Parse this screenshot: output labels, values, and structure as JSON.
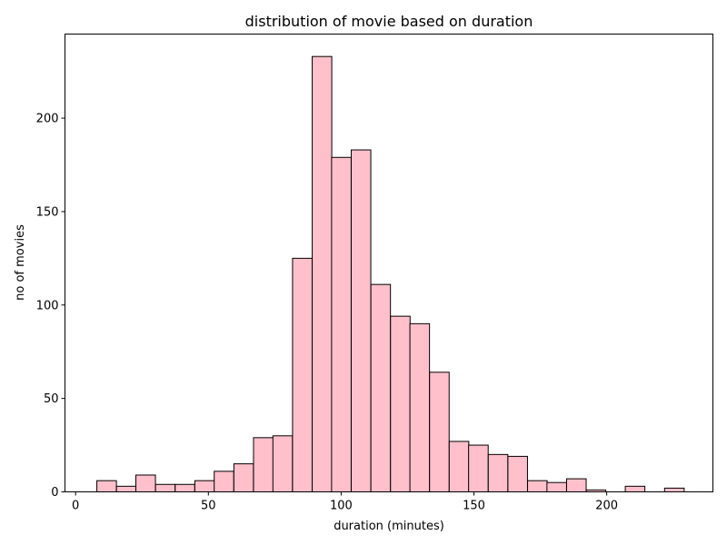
{
  "chart_data": {
    "type": "bar",
    "title": "distribution of movie based on duration",
    "xlabel": "duration (minutes)",
    "ylabel": "no of movies",
    "bar_color": "#ffc0cb",
    "edge_color": "#000000",
    "bin_width": 7.37,
    "xlim": [
      -4,
      240
    ],
    "ylim": [
      0,
      245
    ],
    "xticks": [
      0,
      50,
      100,
      150,
      200
    ],
    "yticks": [
      0,
      50,
      100,
      150,
      200
    ],
    "grid": false,
    "bins": [
      {
        "start": 8.0,
        "count": 6
      },
      {
        "start": 15.4,
        "count": 3
      },
      {
        "start": 22.7,
        "count": 9
      },
      {
        "start": 30.1,
        "count": 4
      },
      {
        "start": 37.5,
        "count": 4
      },
      {
        "start": 44.9,
        "count": 6
      },
      {
        "start": 52.2,
        "count": 11
      },
      {
        "start": 59.6,
        "count": 15
      },
      {
        "start": 67.0,
        "count": 29
      },
      {
        "start": 74.3,
        "count": 30
      },
      {
        "start": 81.7,
        "count": 125
      },
      {
        "start": 89.1,
        "count": 233
      },
      {
        "start": 96.4,
        "count": 179
      },
      {
        "start": 103.8,
        "count": 183
      },
      {
        "start": 111.2,
        "count": 111
      },
      {
        "start": 118.6,
        "count": 94
      },
      {
        "start": 125.9,
        "count": 90
      },
      {
        "start": 133.3,
        "count": 64
      },
      {
        "start": 140.7,
        "count": 27
      },
      {
        "start": 148.0,
        "count": 25
      },
      {
        "start": 155.4,
        "count": 20
      },
      {
        "start": 162.8,
        "count": 19
      },
      {
        "start": 170.2,
        "count": 6
      },
      {
        "start": 177.5,
        "count": 5
      },
      {
        "start": 184.9,
        "count": 7
      },
      {
        "start": 192.3,
        "count": 1
      },
      {
        "start": 199.6,
        "count": 0
      },
      {
        "start": 207.0,
        "count": 3
      },
      {
        "start": 214.4,
        "count": 0
      },
      {
        "start": 221.8,
        "count": 2
      }
    ]
  }
}
